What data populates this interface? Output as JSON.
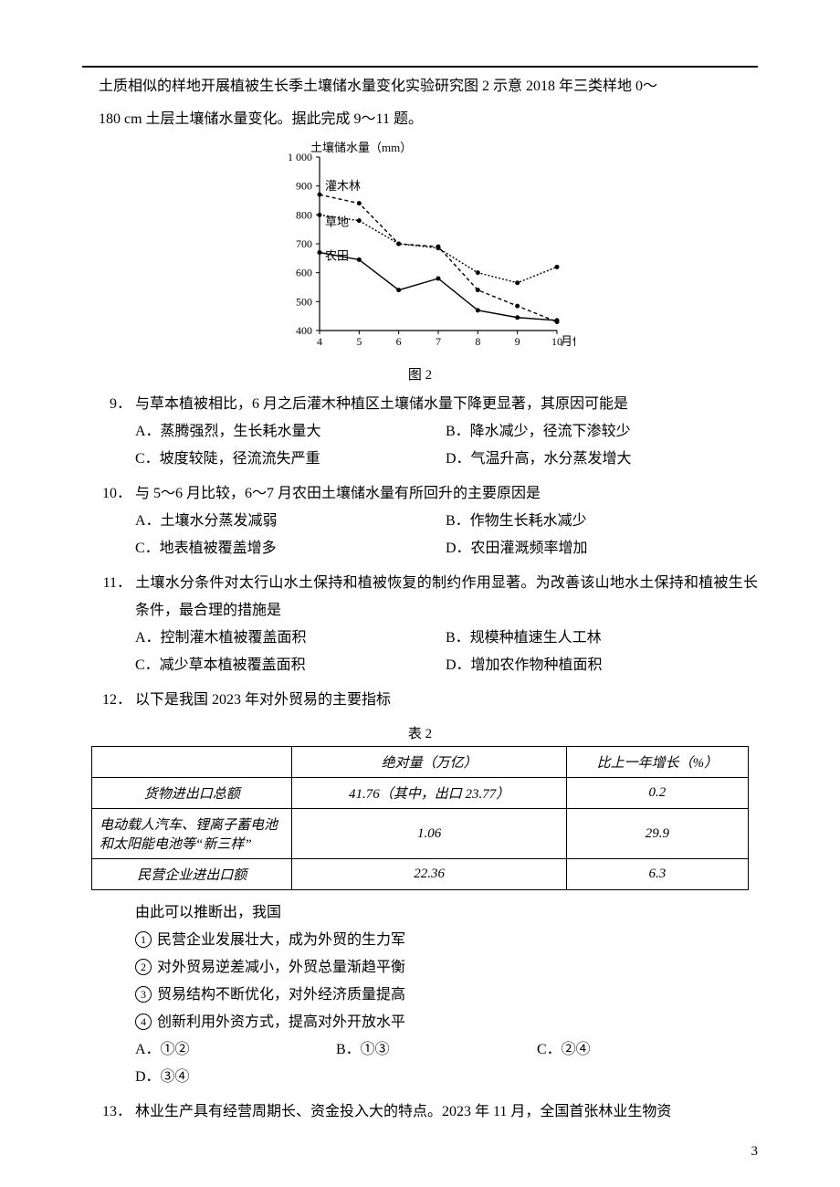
{
  "intro": {
    "line1": "土质相似的样地开展植被生长季土壤储水量变化实验研究图 2 示意 2018 年三类样地 0～",
    "line2": "180 cm 土层土壤储水量变化。据此完成 9～11 题。"
  },
  "chart": {
    "type": "line",
    "title": "土壤储水量（mm）",
    "xlabel": "月份",
    "caption": "图 2",
    "xlim": [
      4,
      10
    ],
    "ylim": [
      400,
      1000
    ],
    "ytick_step": 100,
    "x_ticks": [
      4,
      5,
      6,
      7,
      8,
      9,
      10
    ],
    "background_color": "#ffffff",
    "axis_color": "#000000",
    "font_size": 13,
    "series": [
      {
        "name": "灌木林",
        "label": "灌木林",
        "color": "#000000",
        "dash": "4,3",
        "marker": "circle",
        "points": [
          [
            4,
            870
          ],
          [
            5,
            840
          ],
          [
            6,
            700
          ],
          [
            7,
            690
          ],
          [
            8,
            540
          ],
          [
            9,
            485
          ],
          [
            10,
            430
          ]
        ]
      },
      {
        "name": "草地",
        "label": "草地",
        "color": "#000000",
        "dash": "2,2",
        "marker": "circle",
        "points": [
          [
            4,
            800
          ],
          [
            5,
            780
          ],
          [
            6,
            700
          ],
          [
            7,
            685
          ],
          [
            8,
            600
          ],
          [
            9,
            565
          ],
          [
            10,
            620
          ]
        ]
      },
      {
        "name": "农田",
        "label": "农田",
        "color": "#000000",
        "dash": "none",
        "marker": "circle",
        "points": [
          [
            4,
            670
          ],
          [
            5,
            645
          ],
          [
            6,
            540
          ],
          [
            7,
            580
          ],
          [
            8,
            470
          ],
          [
            9,
            445
          ],
          [
            10,
            435
          ]
        ]
      }
    ]
  },
  "q9": {
    "num": "9．",
    "stem": "与草本植被相比，6 月之后灌木种植区土壤储水量下降更显著，其原因可能是",
    "A": "A．蒸腾强烈，生长耗水量大",
    "B": "B．降水减少，径流下渗较少",
    "C": "C．坡度较陡，径流流失严重",
    "D": "D．气温升高，水分蒸发增大"
  },
  "q10": {
    "num": "10．",
    "stem": "与 5～6 月比较，6～7 月农田土壤储水量有所回升的主要原因是",
    "A": "A．土壤水分蒸发减弱",
    "B": "B．作物生长耗水减少",
    "C": "C．地表植被覆盖增多",
    "D": "D．农田灌溉频率增加"
  },
  "q11": {
    "num": "11．",
    "stem": "土壤水分条件对太行山水土保持和植被恢复的制约作用显著。为改善该山地水土保持和植被生长条件，最合理的措施是",
    "A": "A．控制灌木植被覆盖面积",
    "B": "B．规模种植速生人工林",
    "C": "C．减少草本植被覆盖面积",
    "D": "D．增加农作物种植面积"
  },
  "q12": {
    "num": "12．",
    "stem": "以下是我国 2023 年对外贸易的主要指标",
    "table_caption": "表 2",
    "table": {
      "columns": [
        "",
        "绝对量（万亿）",
        "比上一年增长（%）"
      ],
      "rows": [
        [
          "货物进出口总额",
          "41.76（其中，出口 23.77）",
          "0.2"
        ],
        [
          "电动载人汽车、锂离子蓄电池和太阳能电池等“新三样”",
          "1.06",
          "29.9"
        ],
        [
          "民营企业进出口额",
          "22.36",
          "6.3"
        ]
      ],
      "col_widths": [
        "200px",
        "280px",
        "180px"
      ],
      "border_color": "#000000",
      "font_style": "italic"
    },
    "infer_intro": "由此可以推断出，我国",
    "s1": "民营企业发展壮大，成为外贸的生力军",
    "s2": "对外贸易逆差减小，外贸总量渐趋平衡",
    "s3": "贸易结构不断优化，对外经济质量提高",
    "s4": "创新利用外资方式，提高对外开放水平",
    "A": "A．①②",
    "B": "B．①③",
    "C": "C．②④",
    "D": "D．③④"
  },
  "q13": {
    "num": "13．",
    "stem": "林业生产具有经营周期长、资金投入大的特点。2023 年 11 月，全国首张林业生物资"
  },
  "page_number": "3"
}
